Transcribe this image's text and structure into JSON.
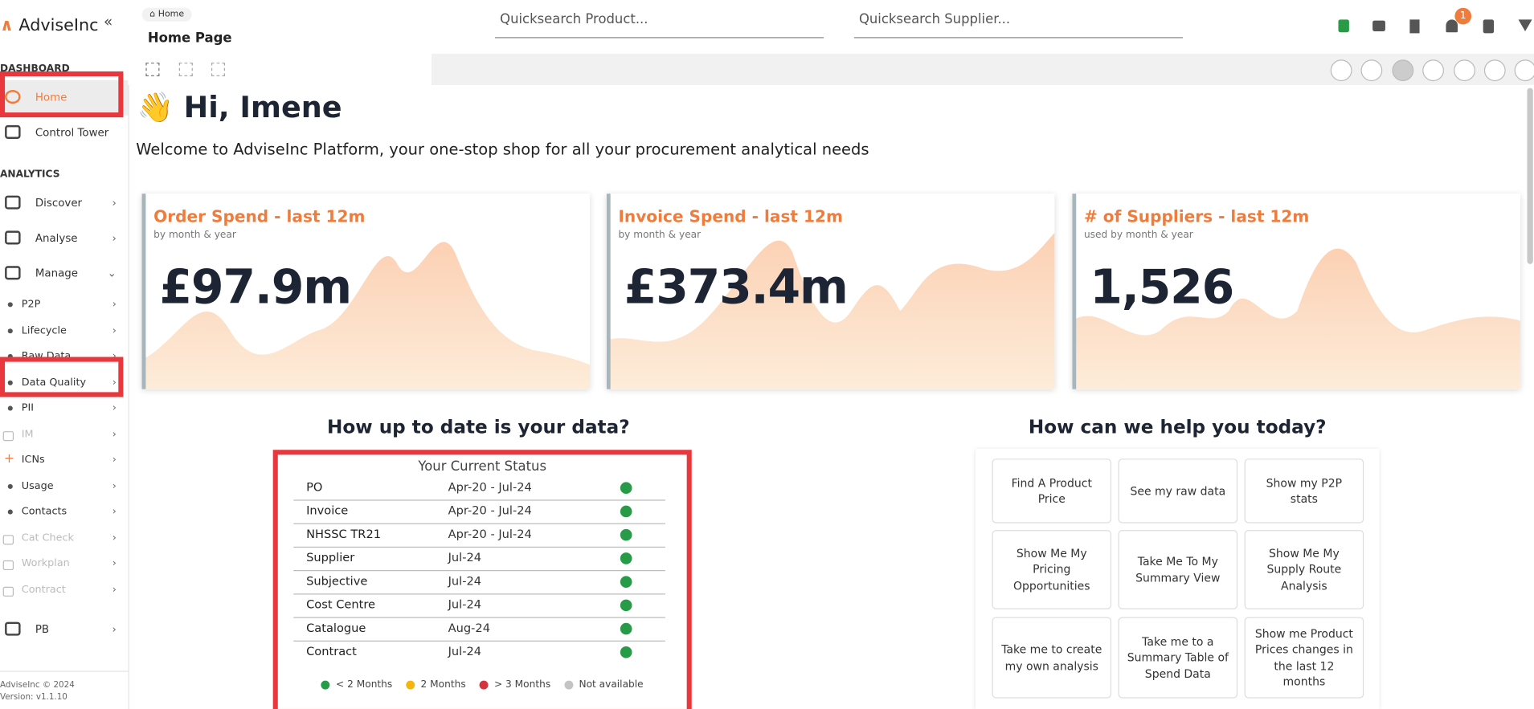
{
  "logo": "AdviseInc",
  "sidebar": {
    "sections": [
      {
        "title": "DASHBOARD",
        "items": [
          {
            "label": "Home",
            "active": true
          },
          {
            "label": "Control Tower"
          }
        ]
      },
      {
        "title": "ANALYTICS",
        "items": [
          {
            "label": "Discover",
            "arrow": true
          },
          {
            "label": "Analyse",
            "arrow": true
          },
          {
            "label": "Manage",
            "arrow": true,
            "open": true
          },
          {
            "label": "P2P",
            "sub": true
          },
          {
            "label": "Lifecycle",
            "sub": true
          },
          {
            "label": "Raw Data",
            "sub": true
          },
          {
            "label": "Data Quality",
            "sub": true
          },
          {
            "label": "PII",
            "sub": true
          },
          {
            "label": "IM",
            "sub": true,
            "locked": true
          },
          {
            "label": "ICNs",
            "sub": true,
            "plus": true
          },
          {
            "label": "Usage",
            "sub": true
          },
          {
            "label": "Contacts",
            "sub": true
          },
          {
            "label": "Cat Check",
            "sub": true,
            "locked": true
          },
          {
            "label": "Workplan",
            "sub": true,
            "locked": true
          },
          {
            "label": "Contract",
            "sub": true,
            "locked": true
          },
          {
            "label": "PB",
            "arrow": true
          }
        ]
      }
    ],
    "footer": [
      "AdviseInc © 2024",
      "Version: v1.1.10"
    ]
  },
  "header": {
    "breadcrumb": "Home",
    "title": "Home Page",
    "search_product": "Quicksearch Product...",
    "search_supplier": "Quicksearch Supplier...",
    "notification_count": "1"
  },
  "greeting": {
    "icon": "👋",
    "text": "Hi, Imene"
  },
  "welcome": "Welcome to AdviseInc Platform, your one-stop shop for all your procurement analytical needs",
  "cards": [
    {
      "title": "Order Spend - last 12m",
      "subtitle": "by month & year",
      "value": "£97.9m"
    },
    {
      "title": "Invoice Spend - last 12m",
      "subtitle": "by month & year",
      "value": "£373.4m"
    },
    {
      "title": "# of Suppliers - last 12m",
      "subtitle": "used by month & year",
      "value": "1,526"
    }
  ],
  "status": {
    "heading": "How up to date is your data?",
    "title": "Your Current Status",
    "rows": [
      {
        "name": "PO",
        "range": "Apr-20 - Jul-24",
        "color": "#279b48"
      },
      {
        "name": "Invoice",
        "range": "Apr-20 - Jul-24",
        "color": "#279b48"
      },
      {
        "name": "NHSSC TR21",
        "range": "Apr-20 - Jul-24",
        "color": "#279b48"
      },
      {
        "name": "Supplier",
        "range": "Jul-24",
        "color": "#279b48"
      },
      {
        "name": "Subjective",
        "range": "Jul-24",
        "color": "#279b48"
      },
      {
        "name": "Cost Centre",
        "range": "Jul-24",
        "color": "#279b48"
      },
      {
        "name": "Catalogue",
        "range": "Aug-24",
        "color": "#279b48"
      },
      {
        "name": "Contract",
        "range": "Jul-24",
        "color": "#279b48"
      }
    ],
    "legend": [
      {
        "label": "< 2 Months",
        "color": "#279b48"
      },
      {
        "label": "2 Months",
        "color": "#f5b50f"
      },
      {
        "label": "> 3 Months",
        "color": "#d4343b"
      },
      {
        "label": "Not available",
        "color": "#c4c4c4"
      }
    ]
  },
  "help": {
    "heading": "How can we help you today?",
    "buttons": [
      "Find A Product Price",
      "See my raw data",
      "Show my P2P stats",
      "Show Me My Pricing Opportunities",
      "Take Me To My Summary View",
      "Show Me My Supply Route Analysis",
      "Take me to create my own analysis",
      "Take me to a Summary Table of Spend Data",
      "Show me Product Prices changes in the last 12 months"
    ]
  }
}
